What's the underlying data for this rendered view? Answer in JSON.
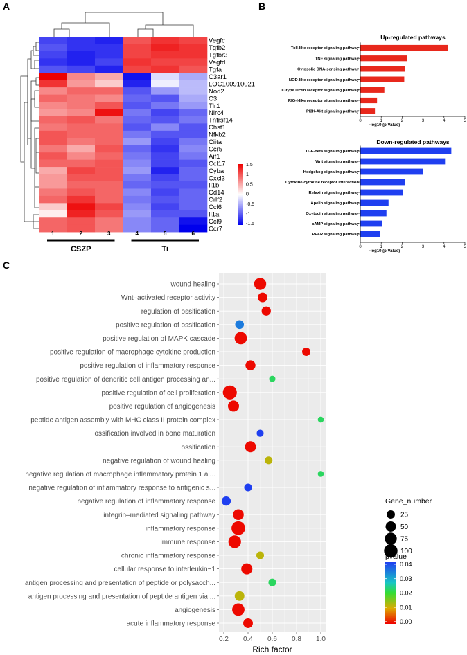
{
  "panels": {
    "a": "A",
    "b": "B",
    "c": "C"
  },
  "colors": {
    "red": "#e8281c",
    "blue": "#1f3ff0",
    "panel_bg": "#ebebeb"
  },
  "chart_data": [
    {
      "type": "heatmap",
      "panel": "A",
      "genes": [
        "Vegfc",
        "Tgfb2",
        "Tgfbr3",
        "Vegfd",
        "Tgfa",
        "C3ar1",
        "LOC100910021",
        "Nod2",
        "C3",
        "Tlr1",
        "Nlrc4",
        "Tnfrsf14",
        "Chst1",
        "Nfkb2",
        "Ciita",
        "Ccr5",
        "Aif1",
        "Ccl17",
        "Cyba",
        "Cxcl3",
        "Il1b",
        "Cd14",
        "Crlf2",
        "Ccl6",
        "Il1a",
        "Ccl9",
        "Ccr7"
      ],
      "samples": [
        "1",
        "2",
        "3",
        "4",
        "5",
        "6"
      ],
      "groups": [
        {
          "name": "CSZP",
          "samples": [
            "1",
            "2",
            "3"
          ]
        },
        {
          "name": "Ti",
          "samples": [
            "4",
            "5",
            "6"
          ]
        }
      ],
      "values": [
        [
          -1.1,
          -1.2,
          -1.3,
          1.0,
          1.2,
          1.1
        ],
        [
          -1.0,
          -1.2,
          -1.2,
          1.1,
          1.3,
          1.2
        ],
        [
          -1.1,
          -1.3,
          -1.2,
          1.1,
          1.2,
          1.2
        ],
        [
          -1.2,
          -1.3,
          -1.1,
          1.2,
          1.1,
          1.1
        ],
        [
          -1.0,
          -1.1,
          -1.3,
          1.1,
          1.2,
          1.0
        ],
        [
          1.5,
          0.7,
          0.5,
          -1.4,
          -0.2,
          -0.5
        ],
        [
          1.2,
          0.6,
          0.3,
          -1.3,
          -0.1,
          -0.4
        ],
        [
          0.7,
          0.9,
          0.9,
          -1.0,
          -0.6,
          -0.4
        ],
        [
          0.9,
          0.8,
          0.7,
          -0.9,
          -1.0,
          -0.5
        ],
        [
          0.7,
          0.8,
          1.0,
          -1.0,
          -0.8,
          -0.6
        ],
        [
          0.6,
          0.7,
          1.4,
          -0.8,
          -1.1,
          -0.9
        ],
        [
          0.9,
          1.0,
          0.8,
          -0.9,
          -1.0,
          -0.8
        ],
        [
          0.8,
          0.9,
          0.9,
          -1.0,
          -0.7,
          -1.0
        ],
        [
          1.0,
          0.9,
          0.9,
          -0.8,
          -1.0,
          -1.0
        ],
        [
          1.0,
          0.8,
          0.9,
          -0.6,
          -1.1,
          -0.8
        ],
        [
          0.8,
          0.5,
          1.0,
          -0.9,
          -1.2,
          -0.7
        ],
        [
          1.0,
          0.7,
          0.9,
          -0.8,
          -1.1,
          -0.8
        ],
        [
          0.9,
          0.9,
          1.0,
          -0.7,
          -1.1,
          -1.0
        ],
        [
          0.5,
          1.1,
          1.0,
          -0.6,
          -1.3,
          -0.9
        ],
        [
          0.6,
          1.0,
          1.0,
          -0.8,
          -1.1,
          -0.9
        ],
        [
          0.6,
          0.9,
          0.9,
          -0.9,
          -1.0,
          -1.0
        ],
        [
          0.8,
          1.0,
          0.9,
          -0.7,
          -1.1,
          -0.9
        ],
        [
          0.9,
          1.2,
          0.9,
          -0.8,
          -1.0,
          -0.9
        ],
        [
          0.3,
          1.4,
          1.1,
          -0.7,
          -1.1,
          -0.9
        ],
        [
          0.1,
          1.3,
          1.0,
          -0.6,
          -1.0,
          -1.0
        ],
        [
          0.9,
          1.0,
          0.8,
          -0.7,
          -0.9,
          -1.4
        ],
        [
          0.9,
          1.0,
          0.8,
          -0.7,
          -0.9,
          -1.5
        ]
      ],
      "legend_ticks": [
        "1.5",
        "1",
        "0.5",
        "0",
        "-0.5",
        "-1",
        "-1.5"
      ],
      "range": [
        -1.5,
        1.5
      ]
    },
    {
      "type": "bar",
      "panel": "B",
      "orientation": "horizontal",
      "title": "Up-regulated pathways",
      "categories": [
        "Toll-like receptor signaling pathway",
        "TNF signaling pathway",
        "Cytosolic DNA-sensing pathway",
        "NOD-like receptor signaling pathway",
        "C-type lectin receptor signaling pathway",
        "RIG-I-like receptor signaling pathway",
        "PI3K-Akt signaling pathway"
      ],
      "values": [
        4.2,
        2.25,
        2.15,
        2.1,
        1.15,
        0.8,
        0.7
      ],
      "xlabel": "-log10 (p Value)",
      "xlim": [
        0,
        5
      ],
      "xticks": [
        "0",
        "1",
        "2",
        "3",
        "4",
        "5"
      ],
      "color": "#e8281c"
    },
    {
      "type": "bar",
      "panel": "B",
      "orientation": "horizontal",
      "title": "Down-regulated pathways",
      "categories": [
        "TGF-beta signaling pathway",
        "Wnt signaling pathway",
        "Hedgehog signaling pathway",
        "Cytokine-cytokine receptor interaction",
        "Relaxin signaling pathway",
        "Apelin signaling pathway",
        "Oxytocin signaling pathway",
        "cAMP signaling pathway",
        "PPAR signaling pathway"
      ],
      "values": [
        4.35,
        4.05,
        3.0,
        2.15,
        2.05,
        1.35,
        1.25,
        1.05,
        0.95
      ],
      "xlabel": "-log10 (p Value)",
      "xlim": [
        0,
        5
      ],
      "xticks": [
        "0",
        "1",
        "2",
        "3",
        "4",
        "5"
      ],
      "color": "#1f3ff0"
    },
    {
      "type": "scatter",
      "panel": "C",
      "xlabel": "Rich factor",
      "xlim": [
        0.2,
        1.0
      ],
      "xticks": [
        "0.2",
        "0.4",
        "0.6",
        "0.8",
        "1.0"
      ],
      "terms": [
        "wound healing",
        "Wnt–activated receptor activity",
        "regulation of ossification",
        "positive regulation of ossification",
        "positive regulation of MAPK cascade",
        "positive regulation of macrophage cytokine production",
        "positive regulation of inflammatory response",
        "positive regulation of dendritic cell antigen processing an...",
        "positive regulation of cell proliferation",
        "positive regulation of angiogenesis",
        "peptide antigen assembly with MHC class II protein complex",
        "ossification involved in bone maturation",
        "ossification",
        "negative regulation of wound healing",
        "negative regulation of macrophage inflammatory protein 1 al...",
        "negative regulation of inflammatory response to antigenic s...",
        "negative regulation of inflammatory response",
        "integrin–mediated signaling pathway",
        "inflammatory response",
        "immune response",
        "chronic inflammatory response",
        "cellular response to interleukin−1",
        "antigen processing and presentation of peptide or polysacch...",
        "antigen processing and presentation of peptide antigen via ...",
        "angiogenesis",
        "acute inflammatory response"
      ],
      "rich_factor": [
        0.5,
        0.52,
        0.55,
        0.33,
        0.34,
        0.88,
        0.42,
        0.6,
        0.25,
        0.28,
        1.0,
        0.5,
        0.42,
        0.57,
        1.0,
        0.4,
        0.22,
        0.32,
        0.32,
        0.29,
        0.5,
        0.39,
        0.6,
        0.33,
        0.32,
        0.4
      ],
      "gene_number": [
        75,
        40,
        35,
        30,
        80,
        25,
        45,
        10,
        110,
        60,
        8,
        15,
        60,
        20,
        8,
        20,
        35,
        55,
        105,
        85,
        20,
        60,
        20,
        40,
        80,
        40
      ],
      "pvalue": [
        0.0005,
        0.0005,
        0.0005,
        0.034,
        0.0005,
        0.0005,
        0.0005,
        0.022,
        0.0005,
        0.0005,
        0.022,
        0.04,
        0.0005,
        0.012,
        0.022,
        0.04,
        0.04,
        0.0005,
        0.0005,
        0.0005,
        0.012,
        0.0005,
        0.022,
        0.012,
        0.0005,
        0.0005
      ],
      "size_legend": {
        "title": "Gene_number",
        "values": [
          "25",
          "50",
          "75",
          "100"
        ]
      },
      "color_legend": {
        "title": "pvalue",
        "ticks": [
          "0.04",
          "0.03",
          "0.02",
          "0.01",
          "0.00"
        ],
        "range": [
          0.0,
          0.04
        ]
      }
    }
  ]
}
